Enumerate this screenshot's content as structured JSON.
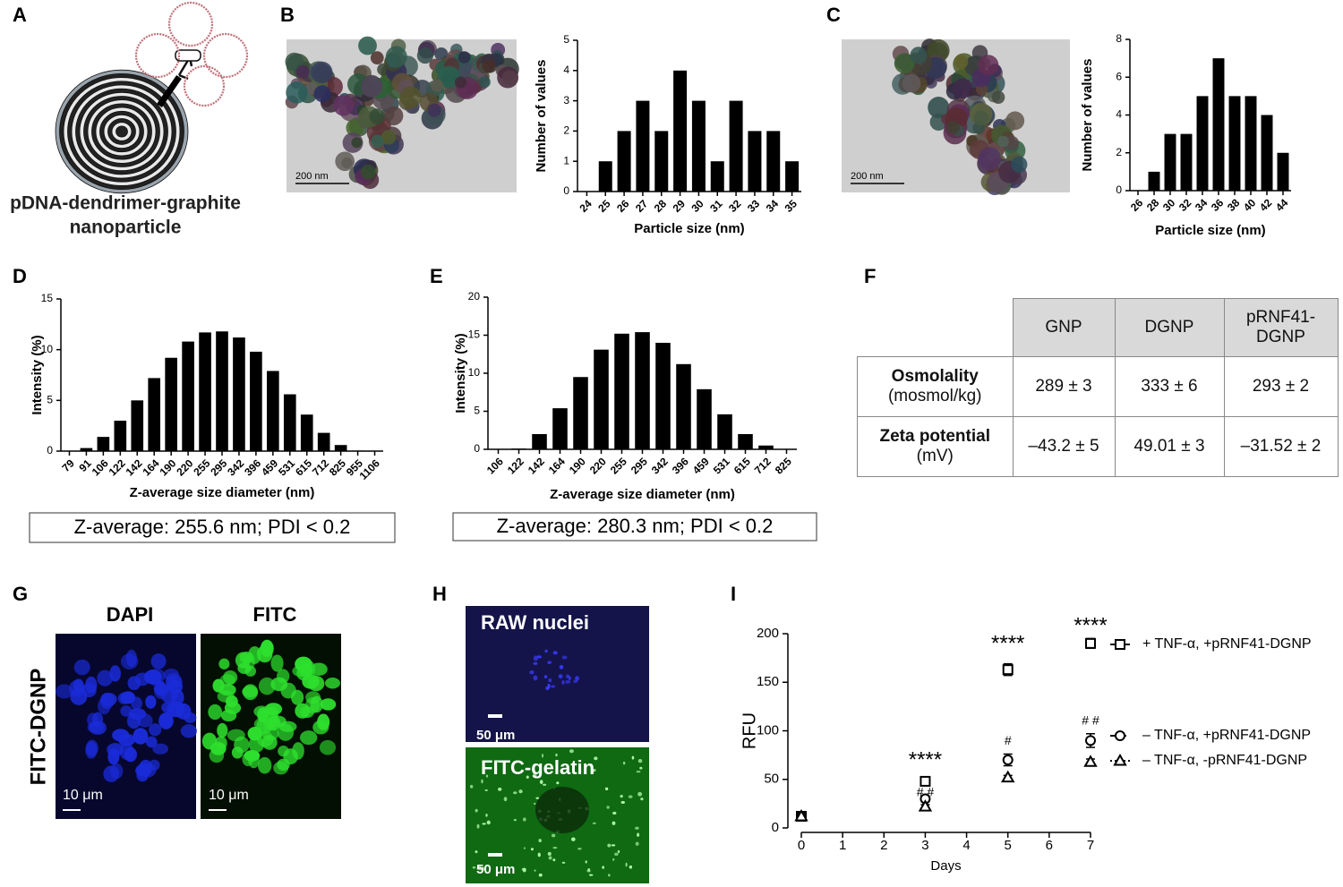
{
  "panel_labels": [
    "A",
    "B",
    "C",
    "D",
    "E",
    "F",
    "G",
    "H",
    "I"
  ],
  "panel_a": {
    "caption_lines": [
      "pDNA-dendrimer-graphite",
      "nanoparticle"
    ]
  },
  "panel_b": {
    "scale_bar": "200 nm"
  },
  "panel_c": {
    "scale_bar": "200 nm"
  },
  "panel_d": {
    "summary": "Z-average: 255.6 nm; PDI < 0.2"
  },
  "panel_e": {
    "summary": "Z-average: 280.3 nm; PDI < 0.2"
  },
  "table": {
    "columns": [
      "GNP",
      "DGNP",
      "pRNF41-DGNP"
    ],
    "rows": [
      {
        "label": "Osmolality",
        "unit": "(mosmol/kg)",
        "cells": [
          "289 ± 3",
          "333 ± 6",
          "293 ± 2"
        ]
      },
      {
        "label": "Zeta potential",
        "unit": "(mV)",
        "cells": [
          "–43.2 ± 5",
          "49.01 ± 3",
          "–31.52 ± 2"
        ]
      }
    ]
  },
  "panel_g": {
    "columns": [
      "DAPI",
      "FITC"
    ],
    "row_label": "FITC-DGNP",
    "scale_bars": [
      "10 μm",
      "10 μm"
    ]
  },
  "panel_h": {
    "images": [
      {
        "label": "RAW nuclei",
        "scale_bar": "50 μm"
      },
      {
        "label": "FITC-gelatin",
        "scale_bar": "50 μm"
      }
    ]
  },
  "chart_data": [
    {
      "type": "bar",
      "xlabel": "Particle size (nm)",
      "ylabel": "Number of values",
      "color": "#000000",
      "categories": [
        "24",
        "25",
        "26",
        "27",
        "28",
        "29",
        "30",
        "31",
        "32",
        "33",
        "34",
        "35"
      ],
      "values": [
        0,
        1,
        2,
        3,
        2,
        4,
        3,
        1,
        3,
        2,
        2,
        1
      ],
      "ylim": [
        0,
        5
      ],
      "yticks": [
        0,
        1,
        2,
        3,
        4,
        5
      ]
    },
    {
      "type": "bar",
      "xlabel": "Particle size (nm)",
      "ylabel": "Number of values",
      "color": "#000000",
      "categories": [
        "26",
        "28",
        "30",
        "32",
        "34",
        "36",
        "38",
        "40",
        "42",
        "44"
      ],
      "values": [
        0,
        1,
        3,
        3,
        5,
        7,
        5,
        5,
        4,
        2
      ],
      "ylim": [
        0,
        8
      ],
      "yticks": [
        0,
        2,
        4,
        6,
        8
      ]
    },
    {
      "type": "bar",
      "xlabel": "Z-average size diameter (nm)",
      "ylabel": "Intensity (%)",
      "color": "#000000",
      "categories": [
        "79",
        "91",
        "106",
        "122",
        "142",
        "164",
        "190",
        "220",
        "255",
        "295",
        "342",
        "396",
        "459",
        "531",
        "615",
        "712",
        "825",
        "955",
        "1106"
      ],
      "values": [
        0,
        0.3,
        1.4,
        3.0,
        5.0,
        7.2,
        9.2,
        10.8,
        11.7,
        11.8,
        11.2,
        9.8,
        7.9,
        5.6,
        3.6,
        1.8,
        0.6,
        0.05,
        0
      ],
      "ylim": [
        0,
        15
      ],
      "yticks": [
        0,
        5,
        10,
        15
      ]
    },
    {
      "type": "bar",
      "xlabel": "Z-average size diameter (nm)",
      "ylabel": "Intensity (%)",
      "color": "#000000",
      "categories": [
        "106",
        "122",
        "142",
        "164",
        "190",
        "220",
        "255",
        "295",
        "342",
        "396",
        "459",
        "531",
        "615",
        "712",
        "825"
      ],
      "values": [
        0,
        0.1,
        2.0,
        5.4,
        9.5,
        13.1,
        15.2,
        15.4,
        14.0,
        11.2,
        7.9,
        4.6,
        2.0,
        0.5,
        0
      ],
      "ylim": [
        0,
        20
      ],
      "yticks": [
        0,
        5,
        10,
        15,
        20
      ]
    },
    {
      "type": "line",
      "xlabel": "Days",
      "ylabel": "RFU",
      "legend": "right",
      "x": [
        0,
        3,
        5,
        7
      ],
      "xlim": [
        0,
        7
      ],
      "xticks": [
        0,
        1,
        2,
        3,
        4,
        5,
        6,
        7
      ],
      "ylim": [
        0,
        200
      ],
      "yticks": [
        0,
        50,
        100,
        150,
        200
      ],
      "series": [
        {
          "name": "+ TNF-α, +pRNF41-DGNP",
          "color": "#000000",
          "dash": "solid",
          "marker": "square",
          "values": [
            12,
            48,
            163,
            190
          ],
          "errors": [
            2,
            2,
            6,
            5
          ]
        },
        {
          "name": "– TNF-α, +pRNF41-DGNP",
          "color": "#000000",
          "dash": "dashed",
          "marker": "circle",
          "values": [
            12,
            30,
            70,
            90
          ],
          "errors": [
            2,
            3,
            6,
            7
          ]
        },
        {
          "name": "– TNF-α, -pRNF41-DGNP",
          "color": "#000000",
          "dash": "dotted",
          "marker": "triangle",
          "values": [
            12,
            22,
            52,
            68
          ],
          "errors": [
            1,
            2,
            2,
            3
          ]
        }
      ],
      "annotations": [
        {
          "text": "****",
          "x": 3,
          "y": 69
        },
        {
          "text": "****",
          "x": 5,
          "y": 189
        },
        {
          "text": "****",
          "x": 7,
          "y": 207
        },
        {
          "text": "# #",
          "x": 3,
          "y": 36
        },
        {
          "text": "#",
          "x": 5,
          "y": 89
        },
        {
          "text": "# #",
          "x": 7,
          "y": 110
        }
      ]
    }
  ]
}
